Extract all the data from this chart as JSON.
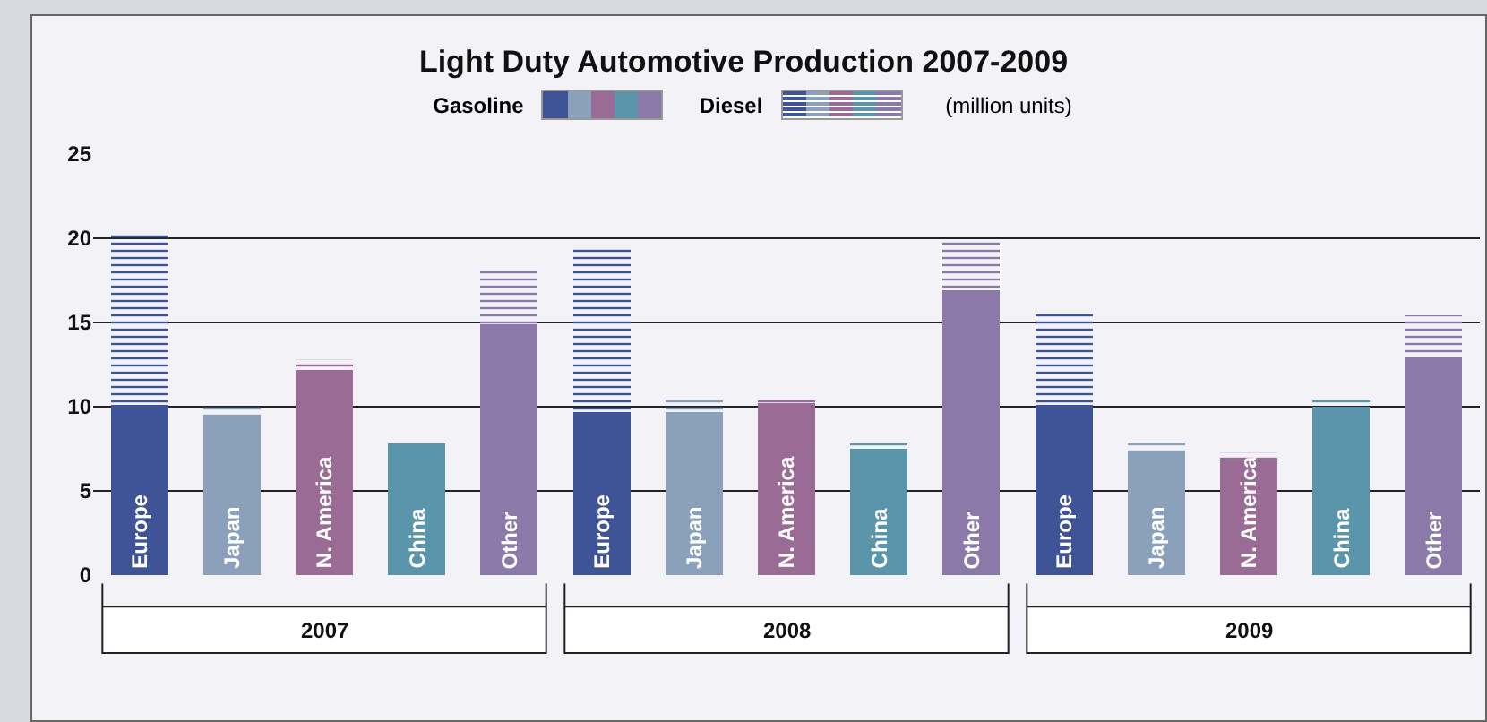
{
  "chart_data": {
    "type": "bar",
    "title": "Light Duty Automotive Production 2007-2009",
    "ylabel": "(million units)",
    "categories": [
      "Europe",
      "Japan",
      "N. America",
      "China",
      "Other",
      "Europe",
      "Japan",
      "N. America",
      "China",
      "Other",
      "Europe",
      "Japan",
      "N. America",
      "China",
      "Other"
    ],
    "stacked": true,
    "legend": "top",
    "grid": "y",
    "ylim": [
      0,
      25
    ],
    "yticks": [
      0,
      5,
      10,
      15,
      20,
      25
    ],
    "annotations": [
      "2007",
      "2008",
      "2009"
    ],
    "series": [
      {
        "name": "Gasoline",
        "colors": [
          "#3f5497",
          "#8aa0bb",
          "#9a6b94",
          "#5b95ab",
          "#8a79a9",
          "#3f5497",
          "#8aa0bb",
          "#9a6b94",
          "#5b95ab",
          "#8a79a9",
          "#3f5497",
          "#8aa0bb",
          "#9a6b94",
          "#5b95ab",
          "#8a79a9"
        ],
        "values": [
          10.1,
          9.5,
          12.2,
          7.8,
          14.9,
          9.7,
          9.7,
          10.2,
          7.5,
          16.9,
          10.1,
          7.3,
          6.8,
          10.0,
          12.9
        ]
      },
      {
        "name": "Diesel",
        "type": "bar",
        "colors": [
          "#3f5497",
          "#8aa0bb",
          "#9a6b94",
          "#5b95ab",
          "#8a79a9",
          "#3f5497",
          "#8aa0bb",
          "#9a6b94",
          "#5b95ab",
          "#8a79a9",
          "#3f5497",
          "#8aa0bb",
          "#9a6b94",
          "#5b95ab",
          "#8a79a9"
        ],
        "values": [
          10.2,
          0.5,
          0.6,
          0.1,
          3.2,
          9.9,
          0.7,
          0.3,
          0.4,
          3.0,
          5.6,
          0.6,
          0.5,
          0.5,
          2.5
        ]
      }
    ]
  }
}
